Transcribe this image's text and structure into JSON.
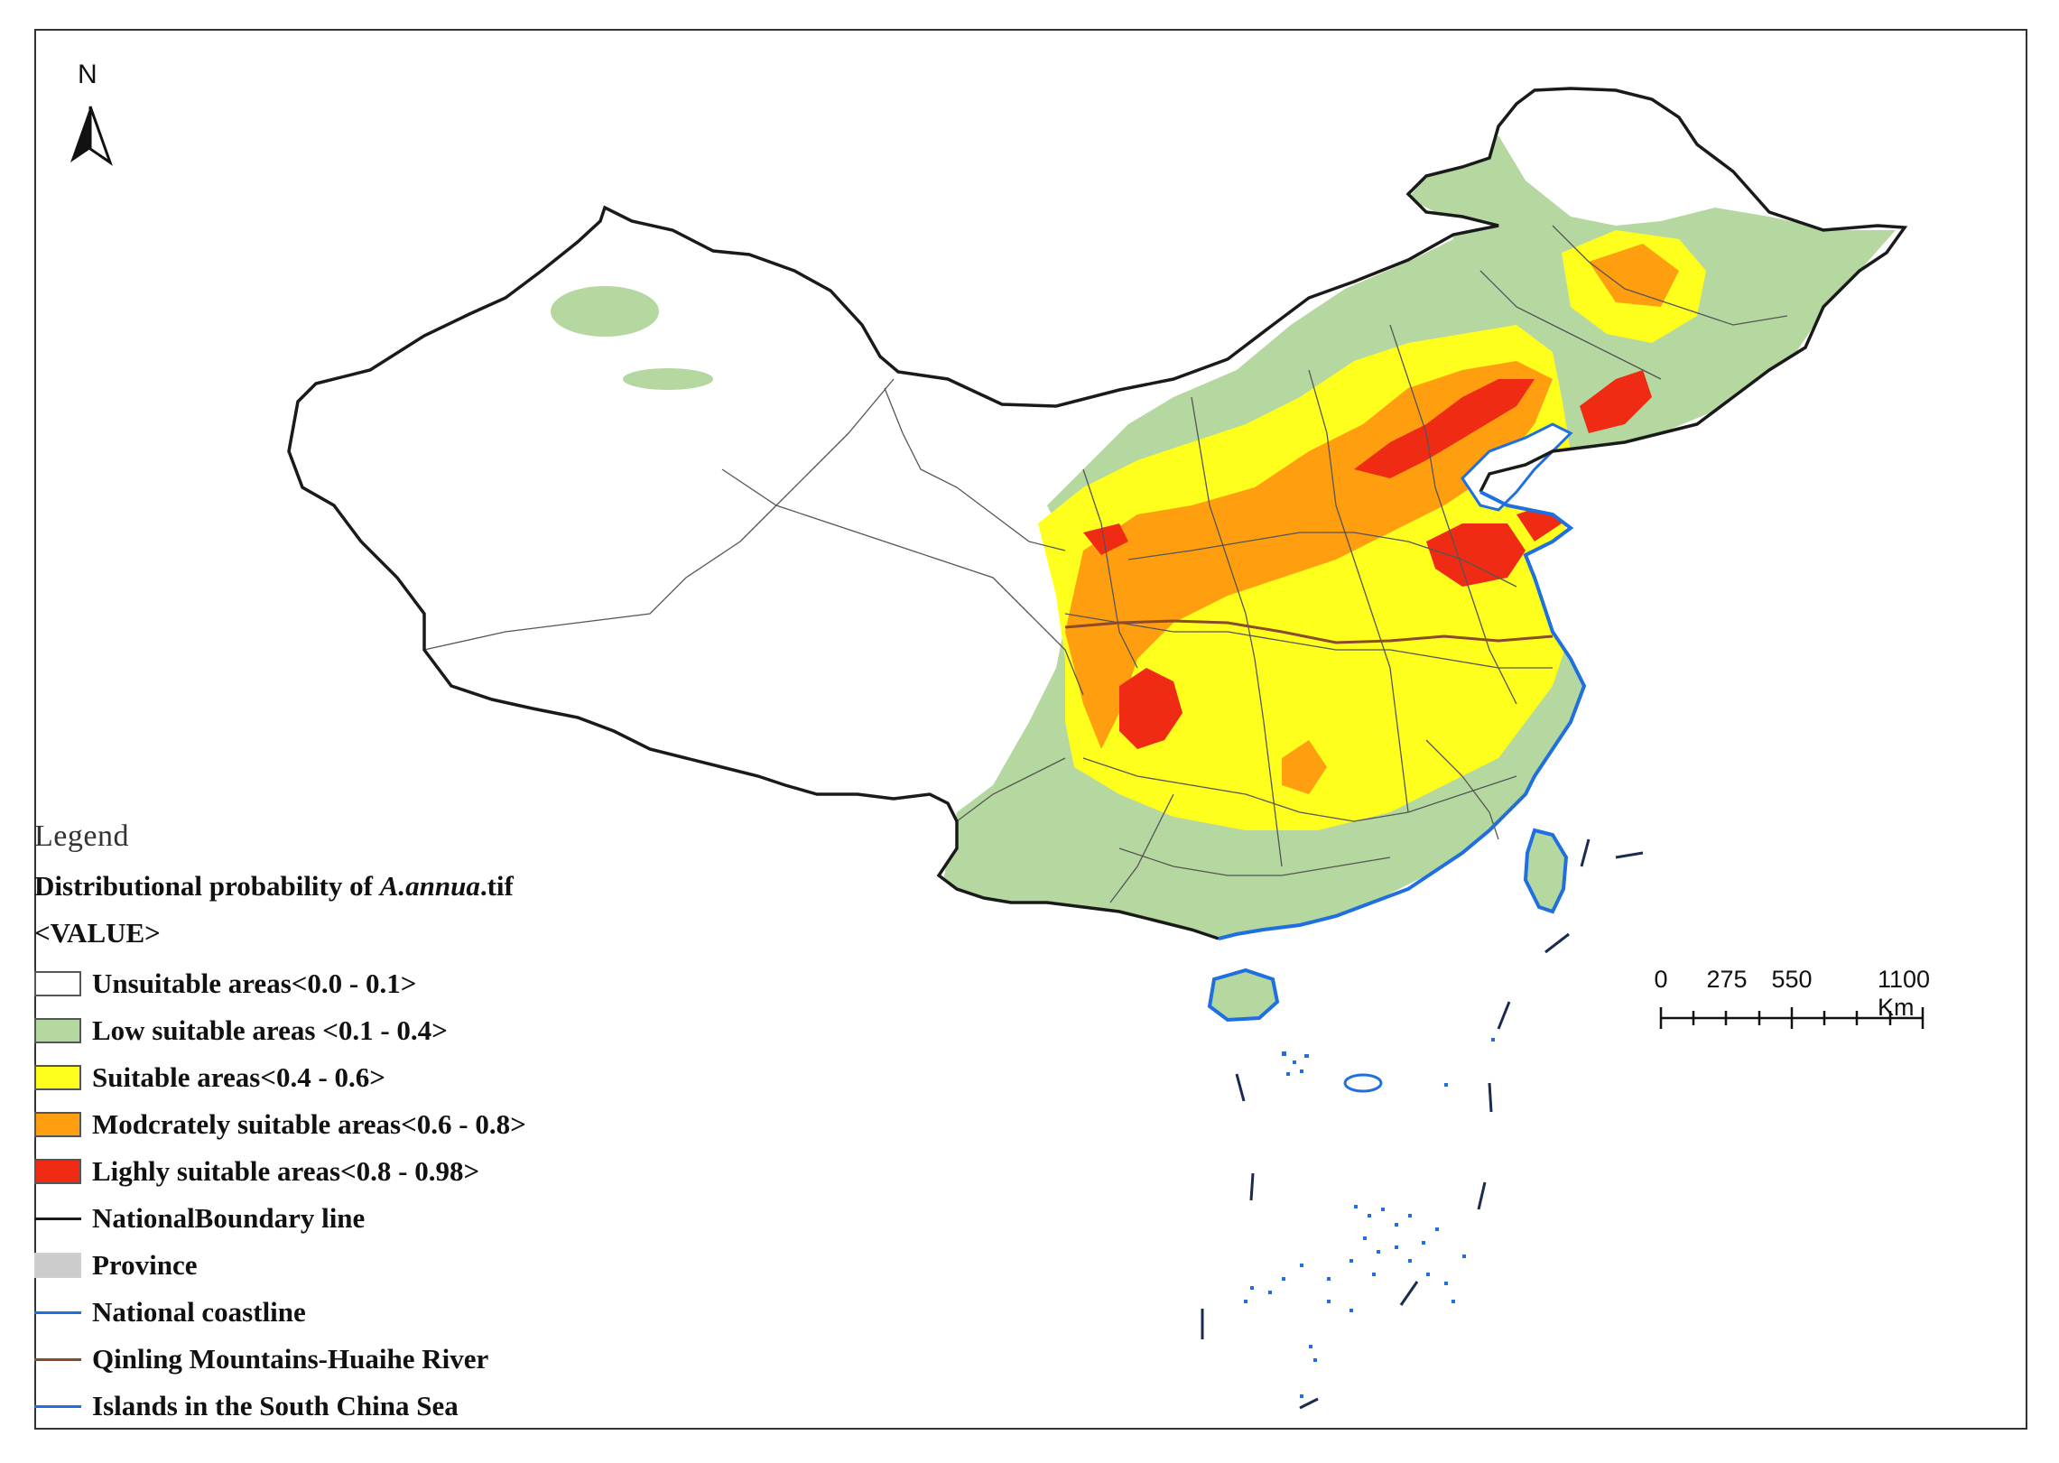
{
  "map": {
    "north_label": "N",
    "colors": {
      "unsuitable": "#ffffff",
      "low": "#b5d7a0",
      "suitable": "#ffff1e",
      "moderately": "#ff9e0f",
      "highly": "#ef2b13",
      "national_boundary": "#1a1a1a",
      "province": "#555555",
      "coastline": "#1f6fe0",
      "qinling_huaihe": "#8b4a2a",
      "south_china_sea_islands": "#1f6fe0"
    }
  },
  "legend": {
    "title": "Legend",
    "raster_prefix": "Distributional probability of ",
    "raster_species": "A.annua",
    "raster_suffix": ".tif",
    "value_field": "<VALUE>",
    "classes": [
      {
        "label": "Unsuitable areas<0.0 - 0.1>",
        "color": "#ffffff",
        "kind": "fill"
      },
      {
        "label": "Low suitable areas <0.1 - 0.4>",
        "color": "#b5d7a0",
        "kind": "fill"
      },
      {
        "label": "Suitable areas<0.4 - 0.6>",
        "color": "#ffff1e",
        "kind": "fill"
      },
      {
        "label": "Modcrately suitable areas<0.6 - 0.8>",
        "color": "#ff9e0f",
        "kind": "fill"
      },
      {
        "label": "Lighly suitable areas<0.8 - 0.98>",
        "color": "#ef2b13",
        "kind": "fill"
      },
      {
        "label": "NationalBoundary line",
        "color": "#1a1a1a",
        "kind": "line"
      },
      {
        "label": "Province",
        "color": "#cccccc",
        "kind": "box"
      },
      {
        "label": "National coastline",
        "color": "#1f6fe0",
        "kind": "line"
      },
      {
        "label": "Qinling Mountains-Huaihe River",
        "color": "#8b4a2a",
        "kind": "line"
      },
      {
        "label": "Islands in the South China Sea",
        "color": "#1f6fe0",
        "kind": "line"
      }
    ]
  },
  "scale_bar": {
    "labels": [
      "0",
      "275",
      "550",
      "1100 Km"
    ]
  }
}
